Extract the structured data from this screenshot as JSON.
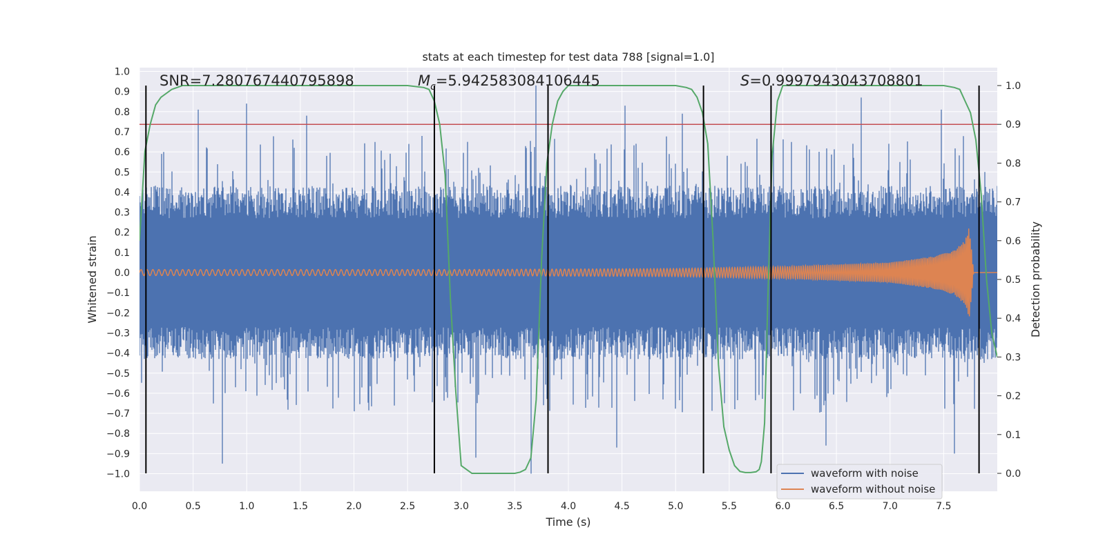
{
  "chart_data": {
    "type": "line",
    "title": "stats at each timestep for test data 788 [signal=1.0]",
    "xlabel": "Time (s)",
    "ylabel": "Whitened strain",
    "ylabel_right": "Detection probability",
    "xlim": [
      0,
      8
    ],
    "ylim": [
      -1.0,
      1.0
    ],
    "ylim_right": [
      0.0,
      1.0
    ],
    "x_ticks": [
      "0.0",
      "0.5",
      "1.0",
      "1.5",
      "2.0",
      "2.5",
      "3.0",
      "3.5",
      "4.0",
      "4.5",
      "5.0",
      "5.5",
      "6.0",
      "6.5",
      "7.0",
      "7.5"
    ],
    "y_ticks": [
      "1.0",
      "0.9",
      "0.8",
      "0.7",
      "0.6",
      "0.5",
      "0.4",
      "0.3",
      "0.2",
      "0.1",
      "0.0",
      "−0.1",
      "−0.2",
      "−0.3",
      "−0.4",
      "−0.5",
      "−0.6",
      "−0.7",
      "−0.8",
      "−0.9",
      "−1.0"
    ],
    "y_ticks_right": [
      "1.0",
      "0.9",
      "0.8",
      "0.7",
      "0.6",
      "0.5",
      "0.4",
      "0.3",
      "0.2",
      "0.1",
      "0.0"
    ],
    "annotations": {
      "snr": "SNR=7.280767440795898",
      "chirp_mass": "=5.942583084106445",
      "chirp_mass_symbol": "M",
      "chirp_mass_sub": "c",
      "s": "=0.9997943043708801",
      "s_symbol": "S"
    },
    "threshold": 0.9,
    "detection_boundaries": [
      0.06,
      2.75,
      3.81,
      5.26,
      5.89,
      7.83
    ],
    "series": [
      {
        "name": "waveform with noise",
        "color": "#4c72b0",
        "core_amplitude": 0.36,
        "peaks": [
          {
            "t": 0.55,
            "v": 0.81
          },
          {
            "t": 1.0,
            "v": 0.84
          },
          {
            "t": 1.56,
            "v": 0.78
          },
          {
            "t": 3.7,
            "v": 0.93
          },
          {
            "t": 4.53,
            "v": 0.83
          },
          {
            "t": 5.06,
            "v": 0.79
          },
          {
            "t": 6.73,
            "v": 0.87
          },
          {
            "t": 7.48,
            "v": 0.81
          },
          {
            "t": 0.77,
            "v": -0.95
          },
          {
            "t": 3.14,
            "v": -0.92
          },
          {
            "t": 3.65,
            "v": -1.0
          },
          {
            "t": 4.45,
            "v": -0.87
          },
          {
            "t": 6.4,
            "v": -0.86
          },
          {
            "t": 7.6,
            "v": -0.9
          }
        ]
      },
      {
        "name": "waveform without noise",
        "color": "#dd8452",
        "envelope": [
          {
            "t": 0.0,
            "v": 0.015
          },
          {
            "t": 3.0,
            "v": 0.015
          },
          {
            "t": 5.0,
            "v": 0.02
          },
          {
            "t": 6.0,
            "v": 0.03
          },
          {
            "t": 7.0,
            "v": 0.05
          },
          {
            "t": 7.4,
            "v": 0.08
          },
          {
            "t": 7.6,
            "v": 0.11
          },
          {
            "t": 7.7,
            "v": 0.16
          },
          {
            "t": 7.74,
            "v": 0.23
          },
          {
            "t": 7.78,
            "v": 0.0
          }
        ]
      },
      {
        "name": "detection probability",
        "color": "#55a868",
        "x": [
          0.0,
          0.05,
          0.1,
          0.15,
          0.2,
          0.3,
          0.4,
          0.6,
          1.0,
          2.0,
          2.5,
          2.65,
          2.7,
          2.75,
          2.8,
          2.85,
          2.9,
          2.95,
          3.0,
          3.1,
          3.3,
          3.5,
          3.55,
          3.6,
          3.65,
          3.7,
          3.75,
          3.8,
          3.85,
          3.9,
          3.95,
          4.0,
          4.1,
          4.3,
          5.0,
          5.1,
          5.15,
          5.2,
          5.25,
          5.3,
          5.35,
          5.4,
          5.45,
          5.5,
          5.55,
          5.6,
          5.65,
          5.7,
          5.75,
          5.78,
          5.8,
          5.83,
          5.86,
          5.9,
          5.95,
          6.0,
          6.1,
          6.5,
          7.5,
          7.6,
          7.65,
          7.7,
          7.75,
          7.8,
          7.85,
          7.9,
          7.95,
          8.0
        ],
        "y": [
          0.6,
          0.83,
          0.9,
          0.95,
          0.97,
          0.99,
          1.0,
          1.0,
          1.0,
          1.0,
          1.0,
          0.995,
          0.99,
          0.96,
          0.9,
          0.77,
          0.45,
          0.21,
          0.02,
          0.0,
          0.0,
          0.0,
          0.003,
          0.01,
          0.04,
          0.19,
          0.55,
          0.8,
          0.9,
          0.96,
          0.985,
          1.0,
          1.0,
          1.0,
          1.0,
          0.995,
          0.99,
          0.97,
          0.93,
          0.85,
          0.6,
          0.28,
          0.12,
          0.06,
          0.02,
          0.005,
          0.002,
          0.002,
          0.004,
          0.01,
          0.03,
          0.13,
          0.45,
          0.82,
          0.96,
          1.0,
          1.0,
          1.0,
          1.0,
          0.995,
          0.99,
          0.96,
          0.93,
          0.86,
          0.72,
          0.5,
          0.36,
          0.3
        ]
      },
      {
        "name": "threshold",
        "color": "#c44e52"
      }
    ],
    "legend": {
      "position": "lower-right",
      "items": [
        {
          "label": "waveform with noise",
          "color": "#4c72b0"
        },
        {
          "label": "waveform without noise",
          "color": "#dd8452"
        }
      ]
    }
  }
}
